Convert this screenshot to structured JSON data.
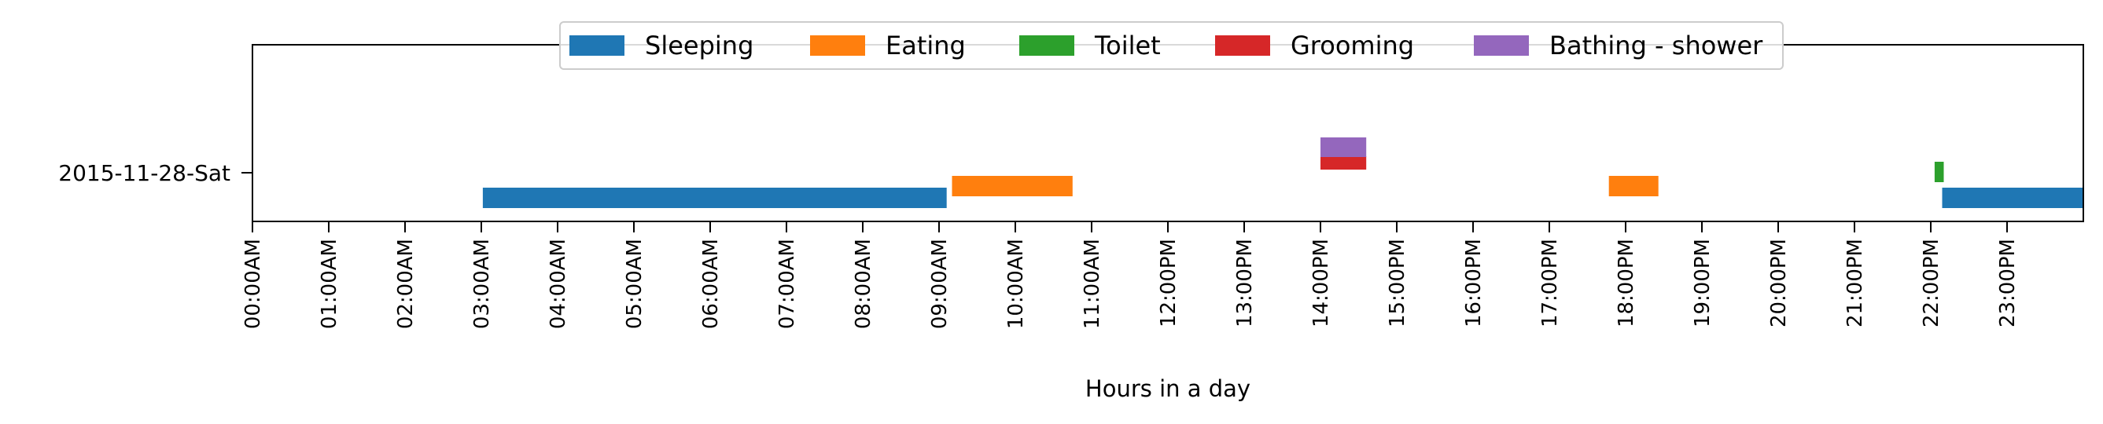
{
  "chart_data": {
    "type": "timeline",
    "title": "",
    "xlabel": "Hours in a day",
    "ylabel": "",
    "xlim": [
      0,
      24
    ],
    "grid": false,
    "legend_position": "top-center",
    "x_ticks": [
      "00:00AM",
      "01:00AM",
      "02:00AM",
      "03:00AM",
      "04:00AM",
      "05:00AM",
      "06:00AM",
      "07:00AM",
      "08:00AM",
      "09:00AM",
      "10:00AM",
      "11:00AM",
      "12:00PM",
      "13:00PM",
      "14:00PM",
      "15:00PM",
      "16:00PM",
      "17:00PM",
      "18:00PM",
      "19:00PM",
      "20:00PM",
      "21:00PM",
      "22:00PM",
      "23:00PM"
    ],
    "rows": [
      "2015-11-28-Sat"
    ],
    "series": [
      {
        "name": "Sleeping",
        "color": "#1f77b4",
        "intervals": [
          [
            3.02,
            9.1
          ],
          [
            22.15,
            24.0
          ]
        ]
      },
      {
        "name": "Eating",
        "color": "#ff7f0e",
        "intervals": [
          [
            9.17,
            10.75
          ],
          [
            17.78,
            18.43
          ]
        ]
      },
      {
        "name": "Toilet",
        "color": "#2ca02c",
        "intervals": [
          [
            22.05,
            22.17
          ]
        ]
      },
      {
        "name": "Grooming",
        "color": "#d62728",
        "intervals": [
          [
            14.0,
            14.6
          ]
        ]
      },
      {
        "name": "Bathing - shower",
        "color": "#9467bd",
        "intervals": [
          [
            14.0,
            14.6
          ]
        ]
      }
    ]
  }
}
